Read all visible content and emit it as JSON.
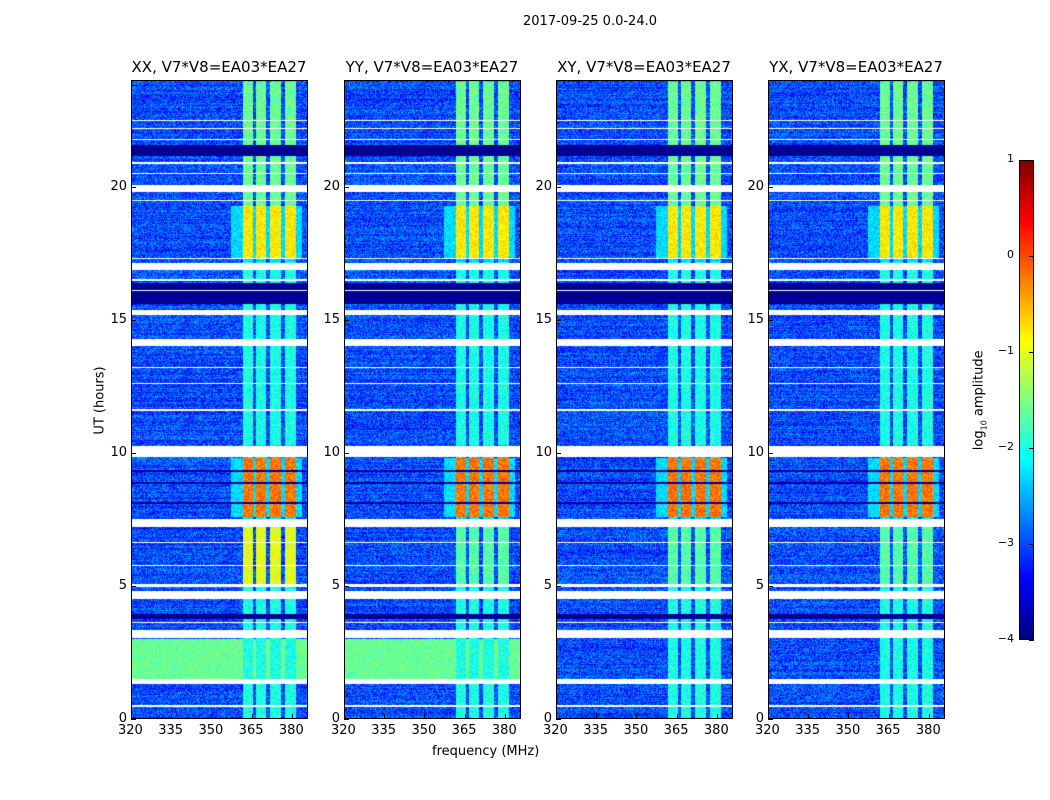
{
  "chart_data": {
    "type": "heatmap",
    "title": "2017-09-25 0.0-24.0",
    "xlabel": "frequency (MHz)",
    "ylabel": "UT (hours)",
    "xlim": [
      320,
      386
    ],
    "ylim": [
      0,
      24
    ],
    "xticks": [
      "320",
      "335",
      "350",
      "365",
      "380"
    ],
    "xtick_values": [
      320,
      335,
      350,
      365,
      380
    ],
    "yticks": [
      "0",
      "5",
      "10",
      "15",
      "20"
    ],
    "ytick_values": [
      0,
      5,
      10,
      15,
      20
    ],
    "colorbar": {
      "label": "log10 amplitude",
      "label_main": "log",
      "label_sub": "10",
      "label_rest": " amplitude",
      "range": [
        -4,
        1
      ],
      "ticks": [
        "1",
        "0",
        "−1",
        "−2",
        "−3",
        "−4"
      ],
      "tick_values": [
        1,
        0,
        -1,
        -2,
        -3,
        -4
      ],
      "colormap": "jet"
    },
    "panels": [
      {
        "title": "XX, V7*V8=EA03*EA27",
        "broad_green": true,
        "strong_5_7": true
      },
      {
        "title": "YY, V7*V8=EA03*EA27",
        "broad_green": true,
        "strong_5_7": false
      },
      {
        "title": "XY, V7*V8=EA03*EA27",
        "broad_green": false,
        "strong_5_7": false
      },
      {
        "title": "YX, V7*V8=EA03*EA27",
        "broad_green": false,
        "strong_5_7": false
      }
    ],
    "rfi_subbands_mhz": [
      [
        361.5,
        365.5
      ],
      [
        366.5,
        370.5
      ],
      [
        372,
        376
      ],
      [
        377.5,
        381.5
      ]
    ],
    "background_level": -3.0,
    "segments": [
      {
        "ut": [
          0,
          5
        ],
        "band_level": -2.0
      },
      {
        "ut": [
          5,
          7.2
        ],
        "band_level": -1.7
      },
      {
        "ut": [
          7.6,
          9.8
        ],
        "band_level": -0.2
      },
      {
        "ut": [
          10.3,
          17.2
        ],
        "band_level": -2.0
      },
      {
        "ut": [
          17.3,
          19.3
        ],
        "band_level": -0.8
      },
      {
        "ut": [
          19.3,
          24
        ],
        "band_level": -1.6
      }
    ],
    "flagged_ut": [
      [
        0.45,
        0.52
      ],
      [
        1.3,
        1.5
      ],
      [
        3.05,
        3.35
      ],
      [
        3.6,
        3.65
      ],
      [
        4.5,
        4.8
      ],
      [
        4.95,
        5.05
      ],
      [
        5.75,
        5.8
      ],
      [
        6.6,
        6.65
      ],
      [
        7.2,
        7.5
      ],
      [
        9.85,
        10.25
      ],
      [
        11.6,
        11.65
      ],
      [
        12.6,
        12.65
      ],
      [
        13.2,
        13.25
      ],
      [
        14.05,
        14.3
      ],
      [
        15.2,
        15.4
      ],
      [
        16.1,
        16.15
      ],
      [
        16.5,
        16.55
      ],
      [
        16.9,
        17.15
      ],
      [
        17.3,
        17.35
      ],
      [
        19.5,
        19.55
      ],
      [
        19.85,
        20.1
      ],
      [
        20.5,
        20.55
      ],
      [
        20.9,
        20.95
      ],
      [
        21.8,
        21.85
      ],
      [
        22.2,
        22.25
      ],
      [
        22.5,
        22.55
      ]
    ],
    "dark_ut": [
      [
        3.75,
        3.95
      ],
      [
        8.1,
        8.15
      ],
      [
        8.85,
        8.9
      ],
      [
        9.3,
        9.35
      ],
      [
        15.6,
        16.4
      ],
      [
        21.2,
        21.6
      ]
    ]
  }
}
